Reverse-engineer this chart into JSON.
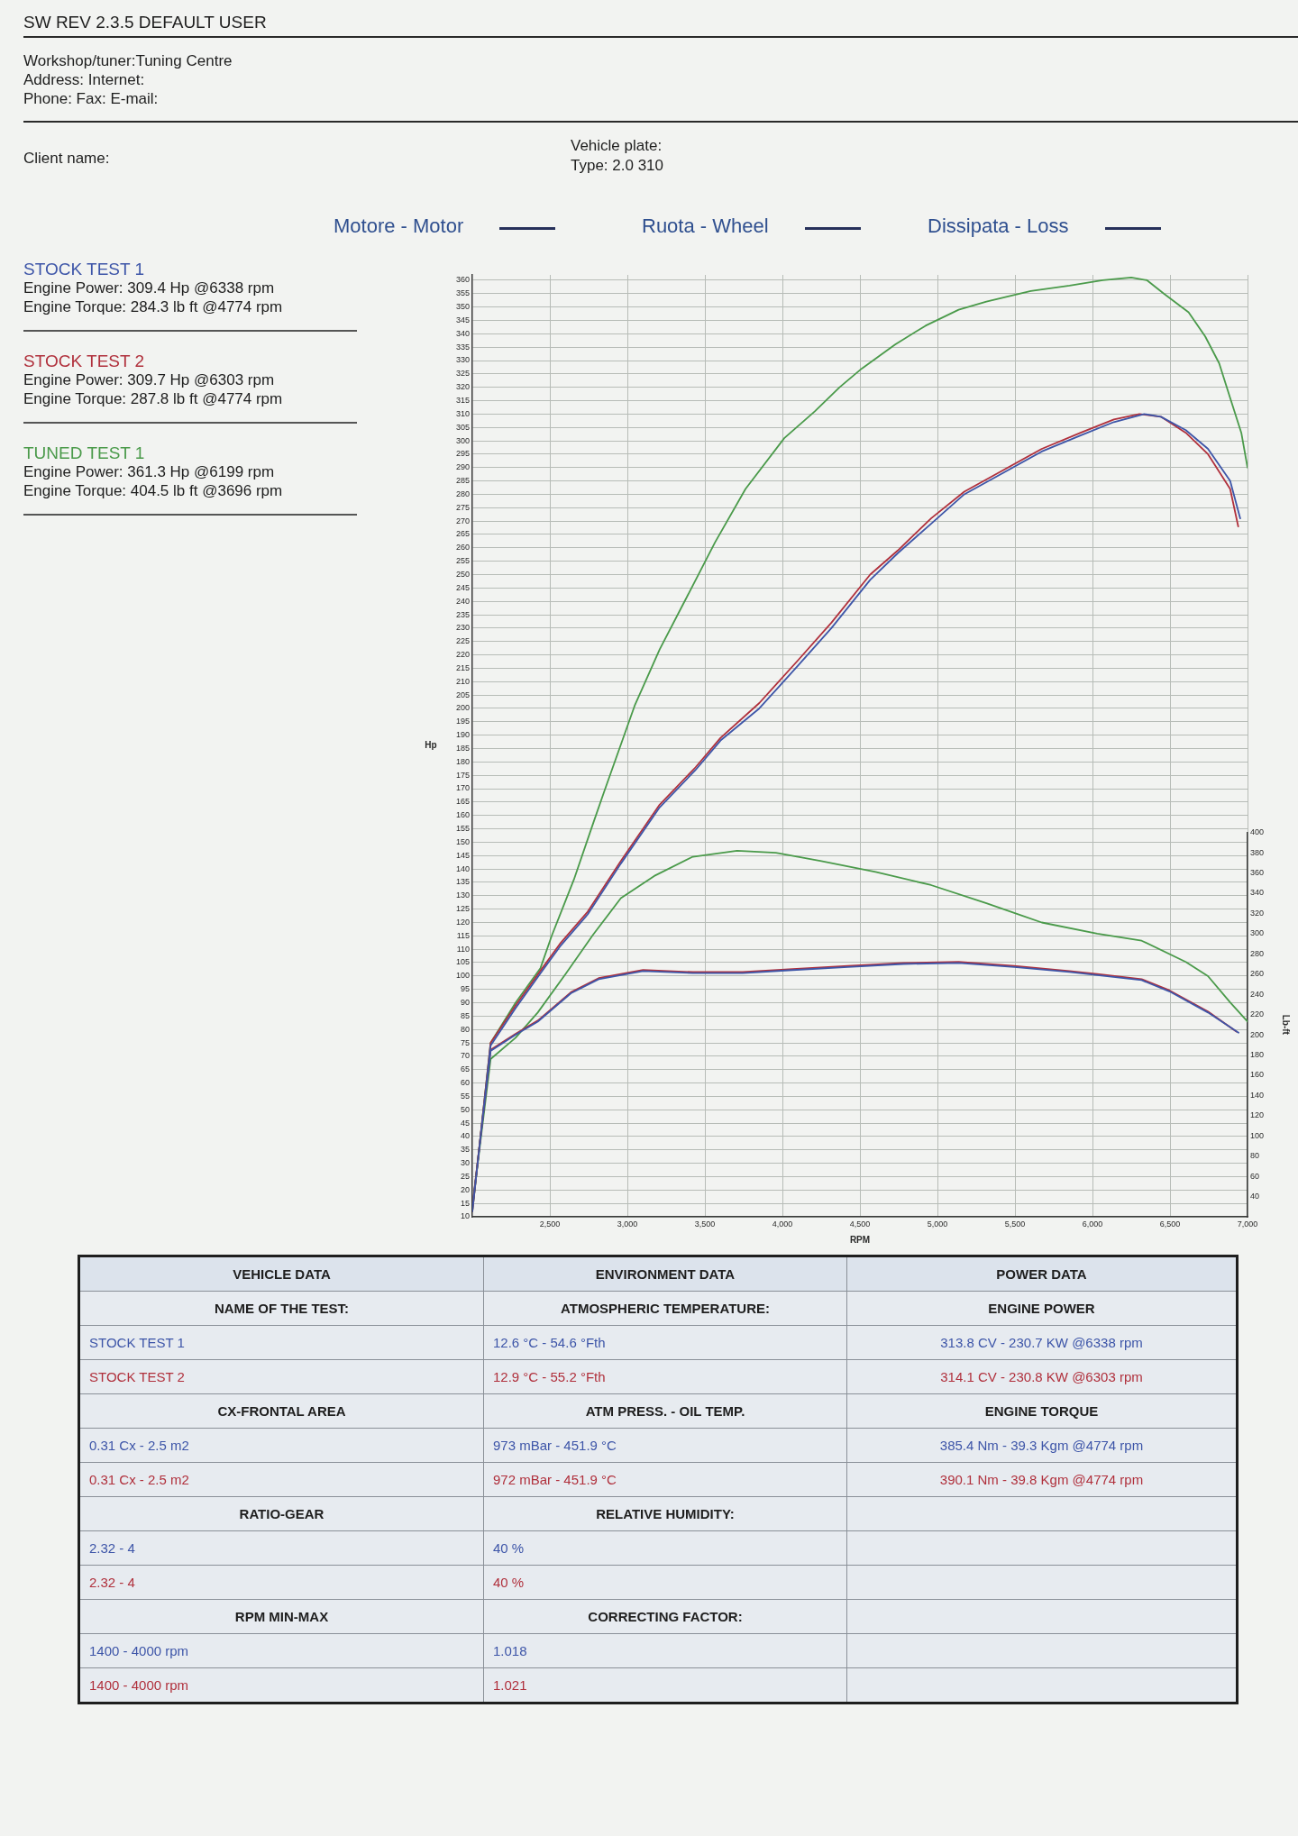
{
  "chart_data": {
    "type": "line",
    "xlabel": "RPM",
    "ylabel": "Hp",
    "y2label": "Lb-ft",
    "xlim": [
      2000,
      7000
    ],
    "xticks": [
      {
        "value": 2500,
        "label": "2,500"
      },
      {
        "value": 3000,
        "label": "3,000"
      },
      {
        "value": 3500,
        "label": "3,500"
      },
      {
        "value": 4000,
        "label": "4,000"
      },
      {
        "value": 4500,
        "label": "4,500"
      },
      {
        "value": 5000,
        "label": "5,000"
      },
      {
        "value": 5500,
        "label": "5,500"
      },
      {
        "value": 6000,
        "label": "6,000"
      },
      {
        "value": 6500,
        "label": "6,500"
      },
      {
        "value": 7000,
        "label": "7,000"
      }
    ],
    "ylim": [
      10,
      362
    ],
    "yticks": [
      10,
      15,
      20,
      25,
      30,
      35,
      40,
      45,
      50,
      55,
      60,
      65,
      70,
      75,
      80,
      85,
      90,
      95,
      100,
      105,
      110,
      115,
      120,
      125,
      130,
      135,
      140,
      145,
      150,
      155,
      160,
      165,
      170,
      175,
      180,
      185,
      190,
      195,
      200,
      205,
      210,
      215,
      220,
      225,
      230,
      235,
      240,
      245,
      250,
      255,
      260,
      265,
      270,
      275,
      280,
      285,
      290,
      295,
      300,
      305,
      310,
      315,
      320,
      325,
      330,
      335,
      340,
      345,
      350,
      355,
      360
    ],
    "y2lim": [
      20,
      400
    ],
    "y2ticks": [
      40,
      60,
      80,
      100,
      120,
      140,
      160,
      180,
      200,
      220,
      240,
      260,
      280,
      300,
      320,
      340,
      360,
      380,
      400
    ],
    "grid": true,
    "legend": "left",
    "marker": "none",
    "line_style": "solid",
    "series": [
      {
        "name": "STOCK TEST 1",
        "color": "#3d55a8",
        "x": [
          2000,
          2118,
          2279,
          2440,
          2565,
          2744,
          2958,
          3208,
          3440,
          3601,
          3851,
          4101,
          4316,
          4566,
          4744,
          4959,
          5173,
          5423,
          5673,
          5923,
          6138,
          6334,
          6441,
          6602,
          6745,
          6888,
          6953
        ],
        "values": [
          12,
          74,
          88,
          101,
          111,
          123,
          142,
          163,
          177,
          188,
          200,
          216,
          230,
          248,
          258,
          269,
          280,
          288,
          296,
          302,
          307,
          310,
          309,
          304,
          297,
          285,
          271
        ]
      },
      {
        "name": "STOCK TEST 2",
        "color": "#b0303c",
        "x": [
          2000,
          2118,
          2279,
          2440,
          2565,
          2744,
          2958,
          3208,
          3440,
          3601,
          3851,
          4101,
          4316,
          4566,
          4744,
          4959,
          5173,
          5423,
          5673,
          5923,
          6138,
          6303,
          6441,
          6602,
          6745,
          6888,
          6940
        ],
        "values": [
          12,
          75,
          89,
          102,
          112,
          124,
          143,
          164,
          178,
          189,
          202,
          218,
          232,
          250,
          259,
          271,
          281,
          289,
          297,
          303,
          308,
          310,
          309,
          303,
          295,
          282,
          268
        ]
      },
      {
        "name": "TUNED TEST 1",
        "color": "#4a9a4a",
        "x": [
          2000,
          2118,
          2279,
          2440,
          2512,
          2655,
          2779,
          2851,
          3047,
          3208,
          3387,
          3565,
          3762,
          4012,
          4209,
          4369,
          4512,
          4727,
          4923,
          5137,
          5316,
          5602,
          5852,
          6066,
          6250,
          6352,
          6460,
          6620,
          6727,
          6817,
          6888,
          6960,
          7000
        ],
        "values": [
          12,
          75,
          90,
          103,
          115,
          136,
          157,
          169,
          201,
          222,
          242,
          262,
          282,
          301,
          311,
          320,
          327,
          336,
          343,
          349,
          352,
          356,
          358,
          360,
          361,
          360,
          355,
          348,
          339,
          329,
          316,
          303,
          290
        ]
      },
      {
        "color": "#3d55a8",
        "axis": "y2",
        "x": [
          2000,
          2118,
          2279,
          2422,
          2636,
          2815,
          3101,
          3422,
          3744,
          4066,
          4423,
          4780,
          5137,
          5495,
          5852,
          6031,
          6317,
          6495,
          6745,
          6942
        ],
        "values": [
          29,
          184,
          200,
          213,
          241,
          255,
          263,
          261,
          261,
          264,
          267,
          270,
          271,
          267,
          262,
          259,
          254,
          243,
          222,
          202
        ]
      },
      {
        "color": "#b0303c",
        "axis": "y2",
        "x": [
          2000,
          2118,
          2279,
          2422,
          2636,
          2815,
          3101,
          3422,
          3744,
          4066,
          4423,
          4780,
          5137,
          5495,
          5852,
          6031,
          6317,
          6495,
          6745,
          6930
        ],
        "values": [
          29,
          185,
          201,
          214,
          242,
          256,
          264,
          262,
          262,
          265,
          268,
          271,
          272,
          268,
          263,
          260,
          255,
          244,
          223,
          203
        ]
      },
      {
        "color": "#4a9a4a",
        "axis": "y2",
        "x": [
          2000,
          2118,
          2279,
          2422,
          2601,
          2779,
          2958,
          3173,
          3422,
          3708,
          3958,
          4244,
          4601,
          4959,
          5316,
          5673,
          6031,
          6317,
          6602,
          6745,
          6888,
          7000
        ],
        "values": [
          29,
          176,
          197,
          222,
          260,
          299,
          335,
          357,
          376,
          382,
          380,
          372,
          361,
          348,
          330,
          311,
          300,
          293,
          272,
          258,
          232,
          213
        ]
      }
    ],
    "annotations": [
      "SW REV 2.3.5 DEFAULT USER",
      "Workshop/tuner:Tuning Centre",
      "Address: Internet:",
      "Phone: Fax: E-mail:",
      "Client name:",
      "Vehicle plate:",
      "Type: 2.0 310",
      "Motore - Motor",
      "Ruota - Wheel",
      "Dissipata - Loss",
      "Engine Power: 309.4 Hp @6338 rpm",
      "Engine Torque: 284.3 lb ft @4774 rpm",
      "Engine Power: 309.7 Hp @6303 rpm",
      "Engine Torque: 287.8 lb ft @4774 rpm",
      "Engine Power: 361.3 Hp @6199 rpm",
      "Engine Torque: 404.5 lb ft @3696 rpm",
      "VEHICLE DATA",
      "ENVIRONMENT DATA",
      "POWER DATA",
      "NAME OF THE TEST:",
      "ATMOSPHERIC TEMPERATURE:",
      "ENGINE POWER",
      "STOCK TEST 1",
      "12.6 °C - 54.6 °Fth",
      "313.8 CV - 230.7 KW @6338 rpm",
      "STOCK TEST 2",
      "12.9 °C - 55.2 °Fth",
      "314.1 CV - 230.8 KW @6303 rpm",
      "CX-FRONTAL AREA",
      "ATM PRESS. - OIL TEMP.",
      "ENGINE TORQUE",
      "0.31 Cx - 2.5 m2",
      "973 mBar - 451.9 °C",
      "385.4 Nm - 39.3 Kgm @4774 rpm",
      "0.31 Cx - 2.5 m2",
      "972 mBar - 451.9 °C",
      "390.1 Nm - 39.8 Kgm @4774 rpm",
      "RATIO-GEAR",
      "RELATIVE HUMIDITY:",
      "2.32 - 4",
      "40 %",
      "2.32 - 4",
      "40 %",
      "RPM MIN-MAX",
      "CORRECTING FACTOR:",
      "1400 - 4000 rpm",
      "1.018",
      "1400 - 4000 rpm",
      "1.021"
    ]
  }
}
